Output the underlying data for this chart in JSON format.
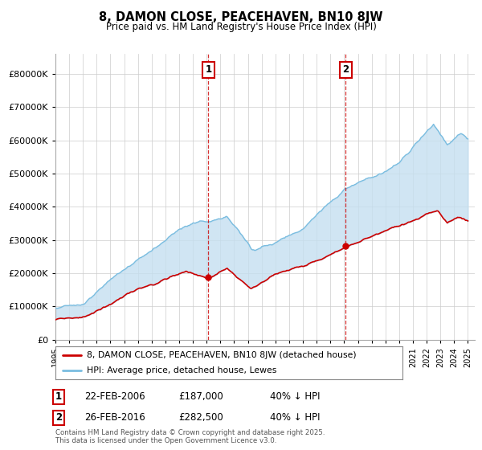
{
  "title": "8, DAMON CLOSE, PEACEHAVEN, BN10 8JW",
  "subtitle": "Price paid vs. HM Land Registry's House Price Index (HPI)",
  "legend_entry1": "8, DAMON CLOSE, PEACEHAVEN, BN10 8JW (detached house)",
  "legend_entry2": "HPI: Average price, detached house, Lewes",
  "annotation1_date": "22-FEB-2006",
  "annotation1_price": "£187,000",
  "annotation1_hpi": "40% ↓ HPI",
  "annotation2_date": "26-FEB-2016",
  "annotation2_price": "£282,500",
  "annotation2_hpi": "40% ↓ HPI",
  "footer": "Contains HM Land Registry data © Crown copyright and database right 2025.\nThis data is licensed under the Open Government Licence v3.0.",
  "hpi_color": "#7abde0",
  "hpi_fill_color": "#c5dff0",
  "price_color": "#cc0000",
  "vline_color": "#cc0000",
  "annotation_box_color": "#cc0000",
  "background_color": "#ffffff",
  "grid_color": "#cccccc",
  "ylim_min": 0,
  "ylim_max": 860000,
  "purchase1_year": 2006.12,
  "purchase1_price": 187000,
  "purchase2_year": 2016.12,
  "purchase2_price": 282500
}
